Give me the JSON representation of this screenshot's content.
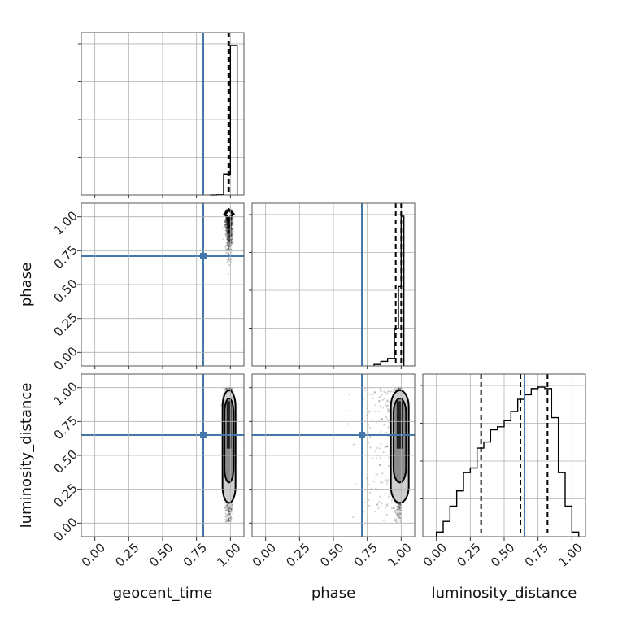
{
  "chart_data": {
    "type": "corner",
    "parameters": [
      "geocent_time",
      "phase",
      "luminosity_distance"
    ],
    "range": [
      -0.1,
      1.1
    ],
    "ticks": [
      "0.00",
      "0.25",
      "0.50",
      "0.75",
      "1.00"
    ],
    "tick_values": [
      0.0,
      0.25,
      0.5,
      0.75,
      1.0
    ],
    "grid": true,
    "truth_color": "#4477aa",
    "truths": {
      "geocent_time": 0.8,
      "phase": 0.71,
      "luminosity_distance": 0.65
    },
    "quantiles": {
      "geocent_time": [
        0.985,
        0.99
      ],
      "phase": [
        0.96,
        1.0
      ],
      "luminosity_distance": [
        0.33,
        0.62,
        0.82
      ]
    },
    "histograms": {
      "geocent_time": {
        "bins": [
          0.85,
          0.9,
          0.95,
          1.0,
          1.05
        ],
        "counts": [
          0.0,
          0.005,
          0.14,
          1.0
        ]
      },
      "phase": {
        "bins": [
          0.8,
          0.85,
          0.9,
          0.95,
          0.98,
          1.0,
          1.02
        ],
        "counts": [
          0.01,
          0.03,
          0.05,
          0.25,
          0.53,
          1.0
        ]
      },
      "luminosity_distance": {
        "bins": [
          0.0,
          0.05,
          0.1,
          0.15,
          0.2,
          0.25,
          0.3,
          0.35,
          0.4,
          0.45,
          0.5,
          0.55,
          0.6,
          0.65,
          0.7,
          0.75,
          0.8,
          0.85,
          0.9,
          0.95,
          1.0,
          1.05
        ],
        "counts": [
          0.03,
          0.1,
          0.2,
          0.3,
          0.42,
          0.45,
          0.58,
          0.62,
          0.7,
          0.72,
          0.76,
          0.82,
          0.9,
          0.93,
          0.97,
          0.98,
          0.97,
          0.78,
          0.42,
          0.2,
          0.03
        ]
      }
    },
    "scatter_panels": [
      {
        "x": "geocent_time",
        "y": "phase",
        "x_center": 0.99,
        "x_spread": 0.012,
        "y_range": [
          0.45,
          1.05
        ]
      },
      {
        "x": "geocent_time",
        "y": "luminosity_distance",
        "x_center": 0.99,
        "x_spread": 0.015,
        "y_range": [
          0.0,
          1.0
        ]
      },
      {
        "x": "phase",
        "y": "luminosity_distance",
        "x_center": 0.98,
        "x_spread": 0.06,
        "y_range": [
          0.0,
          1.0
        ]
      }
    ]
  }
}
